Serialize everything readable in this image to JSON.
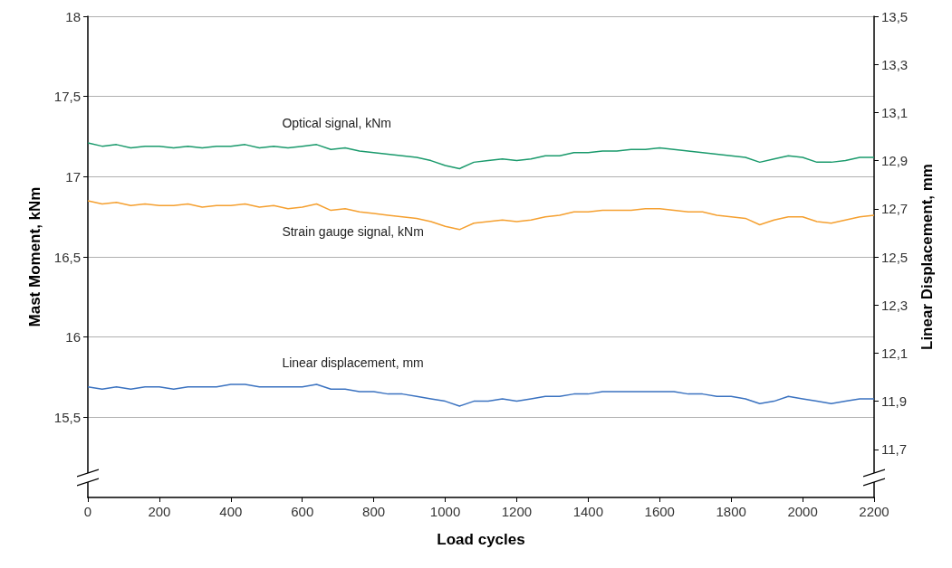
{
  "chart_data": {
    "type": "line",
    "xlabel": "Load cycles",
    "ylabel": "Mast Moment, kNm",
    "y2label": "Linear Displacement, mm",
    "xlim": [
      0,
      2200
    ],
    "xticks": [
      0,
      200,
      400,
      600,
      800,
      1000,
      1200,
      1400,
      1600,
      1800,
      2000,
      2200
    ],
    "ylim": [
      15,
      18
    ],
    "yticks": [
      {
        "value": 15.5,
        "label": "15,5"
      },
      16,
      {
        "value": 16.5,
        "label": "16,5"
      },
      17,
      {
        "value": 17.5,
        "label": "17,5"
      },
      18
    ],
    "y2lim": [
      11.5,
      13.5
    ],
    "y2ticks": [
      {
        "value": 11.7,
        "label": "11,7"
      },
      {
        "value": 11.9,
        "label": "11,9"
      },
      {
        "value": 12.1,
        "label": "12,1"
      },
      {
        "value": 12.3,
        "label": "12,3"
      },
      {
        "value": 12.5,
        "label": "12,5"
      },
      {
        "value": 12.7,
        "label": "12,7"
      },
      {
        "value": 12.9,
        "label": "12,9"
      },
      {
        "value": 13.1,
        "label": "13,1"
      },
      {
        "value": 13.3,
        "label": "13,3"
      },
      {
        "value": 13.5,
        "label": "13,5"
      }
    ],
    "x": [
      0,
      40,
      80,
      120,
      160,
      200,
      240,
      280,
      320,
      360,
      400,
      440,
      480,
      520,
      560,
      600,
      640,
      680,
      720,
      760,
      800,
      840,
      880,
      920,
      960,
      1000,
      1040,
      1080,
      1120,
      1160,
      1200,
      1240,
      1280,
      1320,
      1360,
      1400,
      1440,
      1480,
      1520,
      1560,
      1600,
      1640,
      1680,
      1720,
      1760,
      1800,
      1840,
      1880,
      1920,
      1960,
      2000,
      2040,
      2080,
      2120,
      2160,
      2200
    ],
    "grid": "y",
    "legend": false,
    "marker": "none",
    "line_style": "solid",
    "series": [
      {
        "name": "Optical signal, kNm",
        "color": "#1a9a6c",
        "values": [
          17.21,
          17.19,
          17.2,
          17.18,
          17.19,
          17.19,
          17.18,
          17.19,
          17.18,
          17.19,
          17.19,
          17.2,
          17.18,
          17.19,
          17.18,
          17.19,
          17.2,
          17.17,
          17.18,
          17.16,
          17.15,
          17.14,
          17.13,
          17.12,
          17.1,
          17.07,
          17.05,
          17.09,
          17.1,
          17.11,
          17.1,
          17.11,
          17.13,
          17.13,
          17.15,
          17.15,
          17.16,
          17.16,
          17.17,
          17.17,
          17.18,
          17.17,
          17.16,
          17.15,
          17.14,
          17.13,
          17.12,
          17.09,
          17.11,
          17.13,
          17.12,
          17.09,
          17.09,
          17.1,
          17.12,
          17.12
        ]
      },
      {
        "name": "Strain gauge signal, kNm",
        "color": "#f5a030",
        "values": [
          16.85,
          16.83,
          16.84,
          16.82,
          16.83,
          16.82,
          16.82,
          16.83,
          16.81,
          16.82,
          16.82,
          16.83,
          16.81,
          16.82,
          16.8,
          16.81,
          16.83,
          16.79,
          16.8,
          16.78,
          16.77,
          16.76,
          16.75,
          16.74,
          16.72,
          16.69,
          16.67,
          16.71,
          16.72,
          16.73,
          16.72,
          16.73,
          16.75,
          16.76,
          16.78,
          16.78,
          16.79,
          16.79,
          16.79,
          16.8,
          16.8,
          16.79,
          16.78,
          16.78,
          16.76,
          16.75,
          16.74,
          16.7,
          16.73,
          16.75,
          16.75,
          16.72,
          16.71,
          16.73,
          16.75,
          16.76
        ]
      },
      {
        "name": "Linear displacement, mm",
        "axis": "y2",
        "color": "#3a72c0",
        "values": [
          11.96,
          11.95,
          11.96,
          11.95,
          11.96,
          11.96,
          11.95,
          11.96,
          11.96,
          11.96,
          11.97,
          11.97,
          11.96,
          11.96,
          11.96,
          11.96,
          11.97,
          11.95,
          11.95,
          11.94,
          11.94,
          11.93,
          11.93,
          11.92,
          11.91,
          11.9,
          11.88,
          11.9,
          11.9,
          11.91,
          11.9,
          11.91,
          11.92,
          11.92,
          11.93,
          11.93,
          11.94,
          11.94,
          11.94,
          11.94,
          11.94,
          11.94,
          11.93,
          11.93,
          11.92,
          11.92,
          11.91,
          11.89,
          11.9,
          11.92,
          11.91,
          11.9,
          11.89,
          11.9,
          11.91,
          11.91
        ]
      }
    ]
  }
}
